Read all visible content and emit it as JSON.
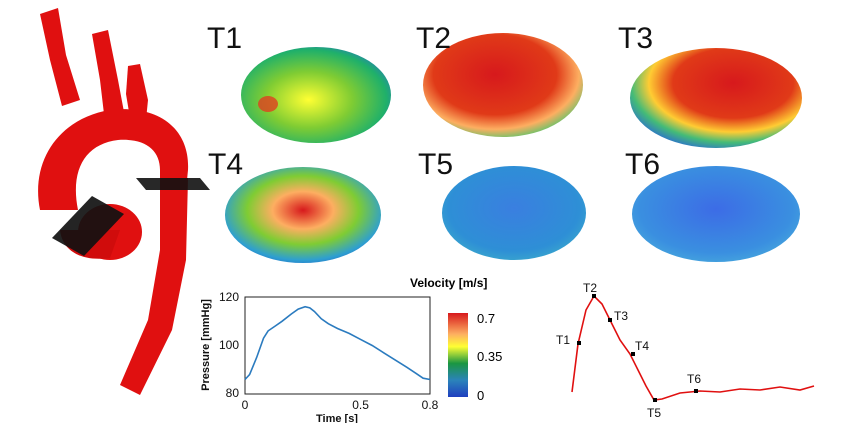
{
  "panels": [
    "T1",
    "T2",
    "T3",
    "T4",
    "T5",
    "T6"
  ],
  "colorbar": {
    "title": "Velocity [m/s]",
    "ticks": [
      "0.7",
      "0.35",
      "0"
    ],
    "colors": [
      "#d7191c",
      "#fdae61",
      "#ffff33",
      "#1a9641",
      "#2b83ba",
      "#1f3fbf"
    ]
  },
  "pressure_plot": {
    "xlabel": "Time [s]",
    "ylabel": "Pressure [mmHg]",
    "xticks": [
      "0",
      "0.5",
      "0.8"
    ],
    "yticks": [
      "120",
      "100",
      "80"
    ]
  },
  "waveform_markers": [
    "T1",
    "T2",
    "T3",
    "T4",
    "T5",
    "T6"
  ],
  "chart_data": {
    "type": "line",
    "title": "",
    "xlabel": "Time [s]",
    "ylabel": "Pressure [mmHg]",
    "xlim": [
      0,
      0.8
    ],
    "ylim": [
      80,
      120
    ],
    "series": [
      {
        "x": [
          0.0,
          0.02,
          0.05,
          0.08,
          0.1,
          0.13,
          0.16,
          0.2,
          0.23,
          0.26,
          0.28,
          0.3,
          0.33,
          0.36,
          0.4,
          0.45,
          0.5,
          0.55,
          0.6,
          0.65,
          0.7,
          0.74,
          0.77,
          0.8
        ],
        "values": [
          86,
          88,
          95,
          103,
          106,
          108,
          110,
          113,
          115,
          116,
          115.5,
          114,
          111,
          109,
          107,
          105,
          102.5,
          100,
          97,
          94,
          91,
          88.5,
          86.5,
          86
        ]
      }
    ]
  }
}
